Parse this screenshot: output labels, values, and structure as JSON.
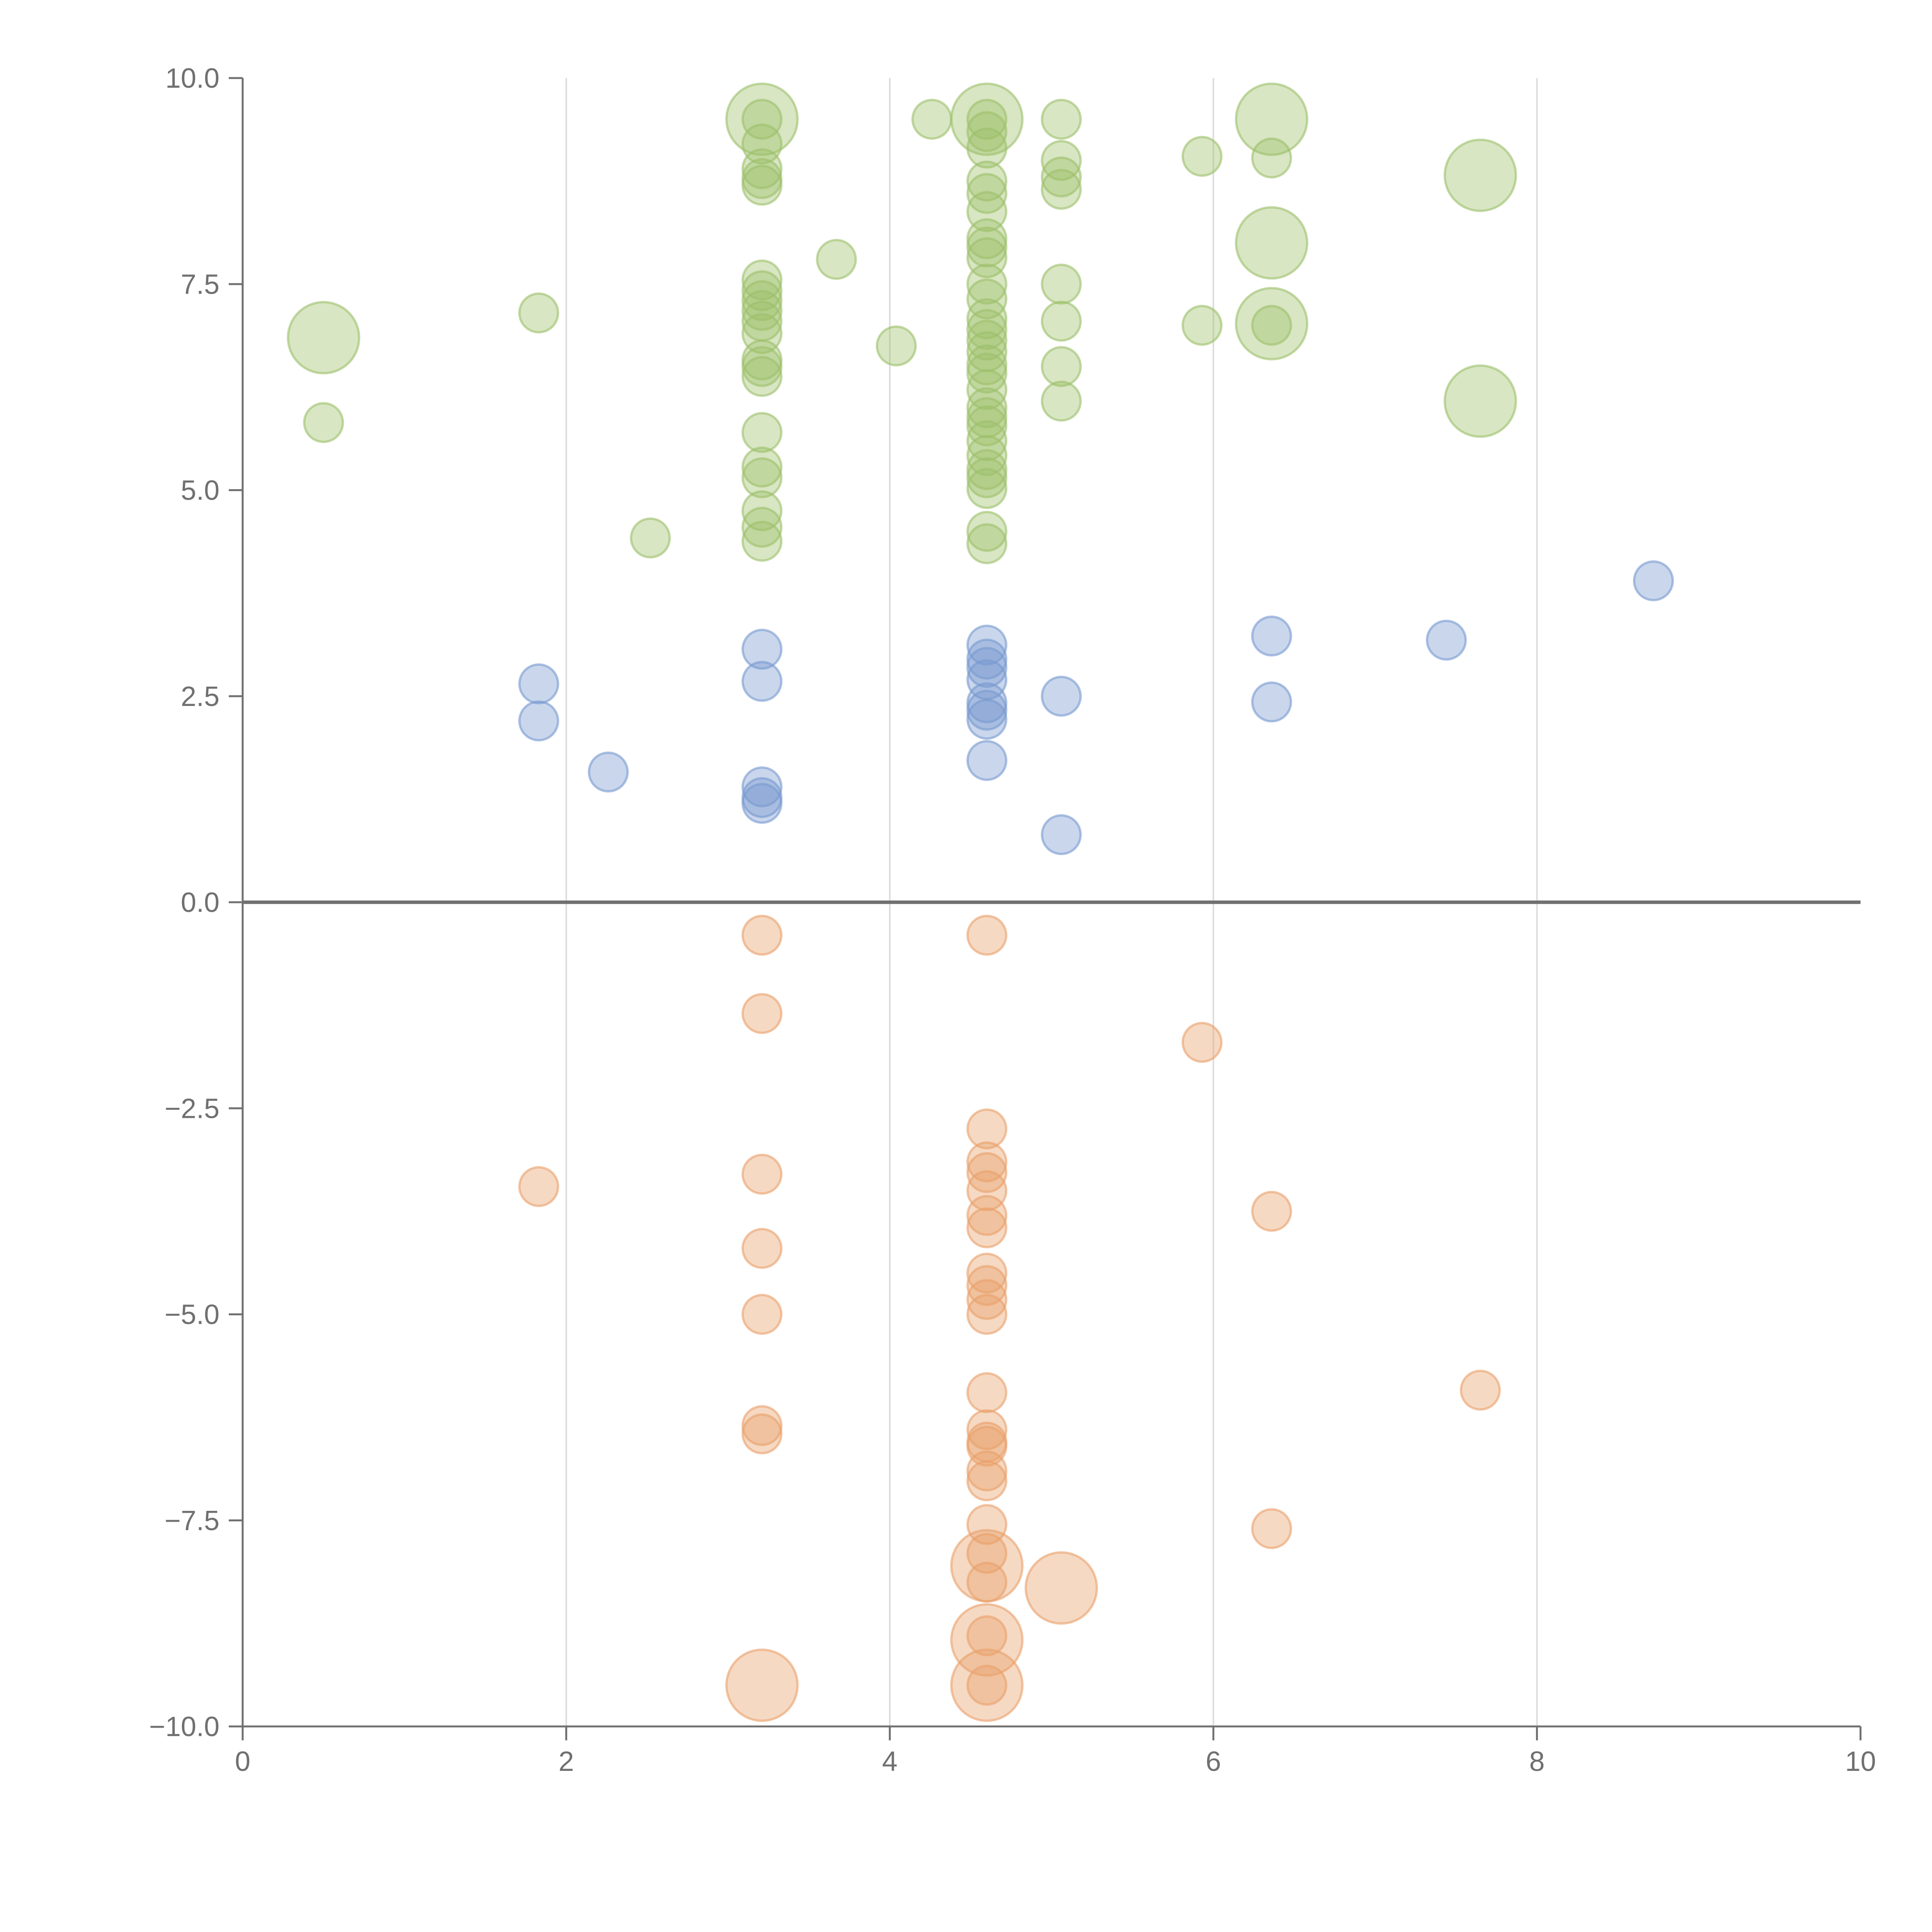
{
  "chart_data": {
    "type": "scatter",
    "title": "",
    "xlabel": "",
    "ylabel": "",
    "xlim": [
      0,
      10
    ],
    "ylim": [
      -10,
      10
    ],
    "x_ticks": [
      0,
      2,
      4,
      6,
      8,
      10
    ],
    "y_ticks": [
      10,
      7.5,
      5,
      2.5,
      0,
      -2.5,
      -5,
      -7.5,
      -10
    ],
    "x_tick_labels": [
      "0",
      "2",
      "4",
      "6",
      "8",
      "10"
    ],
    "y_tick_labels": [
      "10.0",
      "7.5",
      "5.0",
      "2.5",
      "0.0",
      "−2.5",
      "−5.0",
      "−7.5",
      "−10.0"
    ],
    "grid": "vertical lines at x ticks",
    "zero_line": true,
    "legend": "none",
    "marker_style": "semi-transparent circles, marker area scales with size value",
    "series": [
      {
        "color": "#9dc06a",
        "points": [
          [
            0.5,
            6.85,
            3
          ],
          [
            0.5,
            5.82,
            1
          ],
          [
            1.83,
            7.15,
            1
          ],
          [
            2.52,
            4.42,
            1
          ],
          [
            3.21,
            9.5,
            3
          ],
          [
            3.21,
            9.5,
            1
          ],
          [
            3.21,
            9.2,
            1
          ],
          [
            3.21,
            8.9,
            1
          ],
          [
            3.21,
            8.78,
            1
          ],
          [
            3.21,
            8.7,
            1
          ],
          [
            3.21,
            7.55,
            1
          ],
          [
            3.21,
            7.42,
            1
          ],
          [
            3.21,
            7.3,
            1
          ],
          [
            3.21,
            7.18,
            1
          ],
          [
            3.21,
            7.05,
            1
          ],
          [
            3.21,
            6.9,
            1
          ],
          [
            3.21,
            6.58,
            1
          ],
          [
            3.21,
            6.5,
            1
          ],
          [
            3.21,
            6.38,
            1
          ],
          [
            3.21,
            5.7,
            1
          ],
          [
            3.21,
            5.28,
            1
          ],
          [
            3.21,
            5.15,
            1
          ],
          [
            3.21,
            4.75,
            1
          ],
          [
            3.21,
            4.55,
            1
          ],
          [
            3.21,
            4.38,
            1
          ],
          [
            3.67,
            7.8,
            1
          ],
          [
            4.04,
            6.75,
            1
          ],
          [
            4.26,
            9.5,
            1
          ],
          [
            4.6,
            9.5,
            3
          ],
          [
            4.6,
            9.5,
            1
          ],
          [
            4.6,
            9.35,
            1
          ],
          [
            4.6,
            9.15,
            1
          ],
          [
            4.6,
            8.75,
            1
          ],
          [
            4.6,
            8.6,
            1
          ],
          [
            4.6,
            8.38,
            1
          ],
          [
            4.6,
            8.05,
            1
          ],
          [
            4.6,
            7.95,
            1
          ],
          [
            4.6,
            7.82,
            1
          ],
          [
            4.6,
            7.5,
            1
          ],
          [
            4.6,
            7.32,
            1
          ],
          [
            4.6,
            7.08,
            1
          ],
          [
            4.6,
            6.95,
            1
          ],
          [
            4.6,
            6.82,
            1
          ],
          [
            4.6,
            6.68,
            1
          ],
          [
            4.6,
            6.52,
            1
          ],
          [
            4.6,
            6.42,
            1
          ],
          [
            4.6,
            6.22,
            1
          ],
          [
            4.6,
            6.0,
            1
          ],
          [
            4.6,
            5.88,
            1
          ],
          [
            4.6,
            5.78,
            1
          ],
          [
            4.6,
            5.6,
            1
          ],
          [
            4.6,
            5.42,
            1
          ],
          [
            4.6,
            5.25,
            1
          ],
          [
            4.6,
            5.15,
            1
          ],
          [
            4.6,
            5.02,
            1
          ],
          [
            4.6,
            4.5,
            1
          ],
          [
            4.6,
            4.35,
            1
          ],
          [
            5.06,
            9.5,
            1
          ],
          [
            5.06,
            9.0,
            1
          ],
          [
            5.06,
            8.8,
            1
          ],
          [
            5.06,
            8.65,
            1
          ],
          [
            5.06,
            7.5,
            1
          ],
          [
            5.06,
            7.05,
            1
          ],
          [
            5.06,
            6.5,
            1
          ],
          [
            5.06,
            6.08,
            1
          ],
          [
            5.93,
            9.05,
            1
          ],
          [
            5.93,
            7.0,
            1
          ],
          [
            6.36,
            9.5,
            3
          ],
          [
            6.36,
            9.03,
            1
          ],
          [
            6.36,
            8.0,
            3
          ],
          [
            6.36,
            7.02,
            3
          ],
          [
            6.36,
            7.0,
            1
          ],
          [
            7.65,
            8.82,
            3
          ],
          [
            7.65,
            6.08,
            3
          ]
        ]
      },
      {
        "color": "#7899d0",
        "points": [
          [
            1.83,
            2.65,
            1
          ],
          [
            1.83,
            2.2,
            1
          ],
          [
            2.26,
            1.58,
            1
          ],
          [
            3.21,
            3.07,
            1
          ],
          [
            3.21,
            2.68,
            1
          ],
          [
            3.21,
            1.4,
            1
          ],
          [
            3.21,
            1.27,
            1
          ],
          [
            3.21,
            1.2,
            1
          ],
          [
            4.6,
            3.12,
            1
          ],
          [
            4.6,
            2.95,
            1
          ],
          [
            4.6,
            2.85,
            1
          ],
          [
            4.6,
            2.7,
            1
          ],
          [
            4.6,
            2.42,
            1
          ],
          [
            4.6,
            2.33,
            1
          ],
          [
            4.6,
            2.22,
            1
          ],
          [
            4.6,
            1.72,
            1
          ],
          [
            5.06,
            2.5,
            1
          ],
          [
            5.06,
            0.82,
            1
          ],
          [
            6.36,
            3.23,
            1
          ],
          [
            6.36,
            2.43,
            1
          ],
          [
            7.44,
            3.18,
            1
          ],
          [
            8.72,
            3.9,
            1
          ]
        ]
      },
      {
        "color": "#e9a06a",
        "points": [
          [
            1.83,
            -3.45,
            1
          ],
          [
            3.21,
            -0.4,
            1
          ],
          [
            3.21,
            -1.35,
            1
          ],
          [
            3.21,
            -3.3,
            1
          ],
          [
            3.21,
            -4.2,
            1
          ],
          [
            3.21,
            -5.0,
            1
          ],
          [
            3.21,
            -6.35,
            1
          ],
          [
            3.21,
            -6.45,
            1
          ],
          [
            3.21,
            -9.5,
            3
          ],
          [
            4.6,
            -0.4,
            1
          ],
          [
            4.6,
            -2.75,
            1
          ],
          [
            4.6,
            -3.15,
            1
          ],
          [
            4.6,
            -3.28,
            1
          ],
          [
            4.6,
            -3.5,
            1
          ],
          [
            4.6,
            -3.8,
            1
          ],
          [
            4.6,
            -3.95,
            1
          ],
          [
            4.6,
            -4.5,
            1
          ],
          [
            4.6,
            -4.65,
            1
          ],
          [
            4.6,
            -4.82,
            1
          ],
          [
            4.6,
            -5.0,
            1
          ],
          [
            4.6,
            -5.95,
            1
          ],
          [
            4.6,
            -6.4,
            1
          ],
          [
            4.6,
            -6.55,
            1
          ],
          [
            4.6,
            -6.6,
            1
          ],
          [
            4.6,
            -6.9,
            1
          ],
          [
            4.6,
            -7.02,
            1
          ],
          [
            4.6,
            -7.55,
            1
          ],
          [
            4.6,
            -7.9,
            1
          ],
          [
            4.6,
            -8.05,
            3
          ],
          [
            4.6,
            -8.25,
            1
          ],
          [
            4.6,
            -8.95,
            3
          ],
          [
            4.6,
            -8.9,
            1
          ],
          [
            4.6,
            -9.5,
            3
          ],
          [
            4.6,
            -9.5,
            1
          ],
          [
            5.06,
            -8.32,
            3
          ],
          [
            5.93,
            -1.7,
            1
          ],
          [
            6.36,
            -3.75,
            1
          ],
          [
            6.36,
            -7.6,
            1
          ],
          [
            7.65,
            -5.92,
            1
          ]
        ]
      }
    ]
  }
}
